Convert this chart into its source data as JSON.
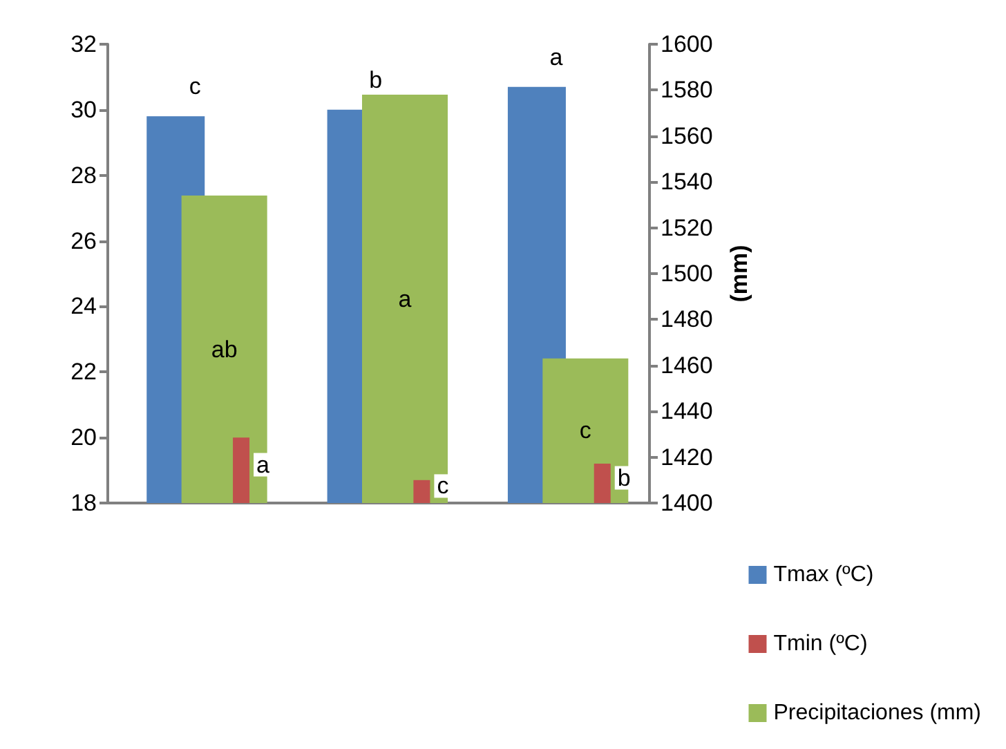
{
  "chart_data": {
    "type": "bar",
    "categories": [
      null,
      null,
      null
    ],
    "series": [
      {
        "name": "Tmax (ºC)",
        "color": "#4f81bd",
        "values": [
          29.8,
          30.0,
          30.7
        ],
        "value_labels": [
          "c",
          "b",
          "a"
        ]
      },
      {
        "name": "Precipitaciones (mm)",
        "color": "#9bbb59",
        "values": [
          1534,
          1578,
          1463
        ],
        "axis": "y2",
        "value_labels": [
          "ab",
          "a",
          "c"
        ]
      },
      {
        "name": "Tmin (ºC)",
        "color": "#c0504d",
        "values": [
          20.0,
          18.7,
          19.2
        ],
        "value_labels": [
          "a",
          "c",
          "b"
        ]
      }
    ],
    "ylim": [
      18,
      32
    ],
    "yticks": [
      18,
      20,
      22,
      24,
      26,
      28,
      30,
      32
    ],
    "y2lim": [
      1400,
      1600
    ],
    "y2ticks": [
      1400,
      1420,
      1440,
      1460,
      1480,
      1500,
      1520,
      1540,
      1560,
      1580,
      1600
    ],
    "y2label": "(mm)",
    "legend": "bottom right",
    "grid": false
  }
}
